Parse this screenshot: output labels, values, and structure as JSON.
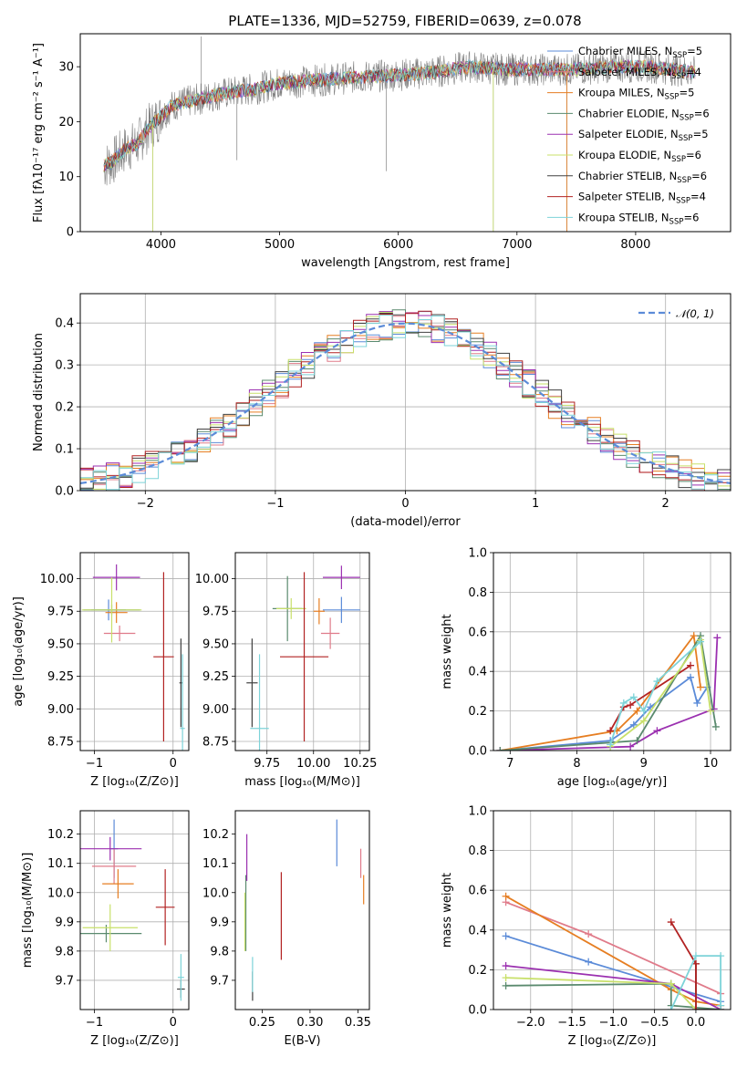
{
  "chart_data": [
    {
      "id": "spectrum",
      "type": "line",
      "title": "PLATE=1336, MJD=52759, FIBERID=0639, z=0.078",
      "xlabel": "wavelength [Angstrom, rest frame]",
      "ylabel": "Flux [fλ10⁻¹⁷ erg cm⁻² s⁻¹ A⁻¹]",
      "xlim": [
        3320,
        8800
      ],
      "ylim": [
        0,
        36
      ],
      "xticks": [
        4000,
        5000,
        6000,
        7000,
        8000
      ],
      "yticks": [
        0,
        10,
        20,
        30
      ],
      "grid": false,
      "legend_position": "top-right",
      "data_color": "#808080",
      "data_anchors": {
        "x": [
          3520,
          3580,
          3700,
          3800,
          3900,
          4000,
          4100,
          4300,
          4500,
          4800,
          5000,
          5300,
          5600,
          6000,
          6300,
          6600,
          6900,
          7200,
          7500,
          7800,
          8100,
          8500
        ],
        "y": [
          12,
          12.5,
          15,
          16,
          19,
          21,
          23,
          24,
          25,
          26,
          27,
          27.5,
          28,
          28.5,
          29,
          30,
          29.5,
          29.5,
          29.5,
          30,
          30,
          29
        ]
      },
      "series": [
        {
          "name": "Chabrier MILES, N",
          "sub": "SSP",
          "suffix": "=5",
          "color": "#5b8bd8"
        },
        {
          "name": "Salpeter MILES, N",
          "sub": "SSP",
          "suffix": "=4",
          "color": "#e07b8a"
        },
        {
          "name": "Kroupa MILES, N",
          "sub": "SSP",
          "suffix": "=5",
          "color": "#e67e22"
        },
        {
          "name": "Chabrier ELODIE, N",
          "sub": "SSP",
          "suffix": "=6",
          "color": "#5a8a6e"
        },
        {
          "name": "Salpeter ELODIE, N",
          "sub": "SSP",
          "suffix": "=5",
          "color": "#9b30b0"
        },
        {
          "name": "Kroupa ELODIE, N",
          "sub": "SSP",
          "suffix": "=6",
          "color": "#c8e06a"
        },
        {
          "name": "Chabrier STELIB, N",
          "sub": "SSP",
          "suffix": "=6",
          "color": "#404040"
        },
        {
          "name": "Salpeter STELIB, N",
          "sub": "SSP",
          "suffix": "=4",
          "color": "#b22222"
        },
        {
          "name": "Kroupa STELIB, N",
          "sub": "SSP",
          "suffix": "=6",
          "color": "#7dd3d8"
        }
      ]
    },
    {
      "id": "histogram",
      "type": "histogram",
      "xlabel": "(data-model)/error",
      "ylabel": "Normed distribution",
      "xlim": [
        -2.5,
        2.5
      ],
      "ylim": [
        0,
        0.47
      ],
      "xticks": [
        -2,
        -1,
        0,
        1,
        2
      ],
      "yticks": [
        0.0,
        0.1,
        0.2,
        0.3,
        0.4
      ],
      "grid": true,
      "legend_position": "top-right",
      "reference_curve": {
        "name": "𝒩(0, 1)",
        "mean": 0,
        "sigma": 1,
        "color": "#5b8bd8"
      },
      "bin_width": 0.1
    },
    {
      "id": "age_vs_Z",
      "type": "scatter",
      "xlabel": "Z [log₁₀(Z/Z⊙)]",
      "ylabel": "age  [log₁₀(age/yr)]",
      "xlim": [
        -1.18,
        0.2
      ],
      "ylim": [
        8.68,
        10.2
      ],
      "xticks": [
        -1,
        0
      ],
      "yticks": [
        8.75,
        9.0,
        9.25,
        9.5,
        9.75,
        10.0
      ],
      "grid": true,
      "points": [
        {
          "x": -0.82,
          "y": 9.76,
          "xerr": 0.22,
          "yerr": 0.08,
          "color": "#5b8bd8"
        },
        {
          "x": -0.68,
          "y": 9.58,
          "xerr": 0.2,
          "yerr": 0.06,
          "color": "#e07b8a"
        },
        {
          "x": -0.72,
          "y": 9.74,
          "xerr": 0.14,
          "yerr": 0.08,
          "color": "#e67e22"
        },
        {
          "x": -0.78,
          "y": 9.76,
          "xerr": 0.36,
          "yerr": 0.04,
          "color": "#5a8a6e"
        },
        {
          "x": -0.72,
          "y": 10.01,
          "xerr": 0.3,
          "yerr": 0.1,
          "color": "#9b30b0"
        },
        {
          "x": -0.78,
          "y": 9.76,
          "xerr": 0.38,
          "yerr": 0.25,
          "color": "#c8e06a"
        },
        {
          "x": 0.1,
          "y": 9.2,
          "xerr": 0.02,
          "yerr": 0.34,
          "color": "#404040"
        },
        {
          "x": -0.12,
          "y": 9.4,
          "xerr": 0.13,
          "yerr": 0.65,
          "color": "#b22222"
        },
        {
          "x": 0.12,
          "y": 8.85,
          "xerr": 0.03,
          "yerr": 0.57,
          "color": "#7dd3d8"
        }
      ]
    },
    {
      "id": "age_vs_mass",
      "type": "scatter",
      "xlabel": "mass [log₁₀(M/M⊙)]",
      "ylabel": "",
      "xlim": [
        9.58,
        10.3
      ],
      "ylim": [
        8.68,
        10.2
      ],
      "xticks": [
        9.75,
        10.0,
        10.25
      ],
      "yticks": [
        8.75,
        9.0,
        9.25,
        9.5,
        9.75,
        10.0
      ],
      "grid": true,
      "points": [
        {
          "x": 10.15,
          "y": 9.76,
          "xerr": 0.1,
          "yerr": 0.1,
          "color": "#5b8bd8"
        },
        {
          "x": 10.09,
          "y": 9.58,
          "xerr": 0.05,
          "yerr": 0.12,
          "color": "#e07b8a"
        },
        {
          "x": 10.03,
          "y": 9.75,
          "xerr": 0.03,
          "yerr": 0.1,
          "color": "#e67e22"
        },
        {
          "x": 9.86,
          "y": 9.77,
          "xerr": 0.08,
          "yerr": 0.25,
          "color": "#5a8a6e"
        },
        {
          "x": 10.15,
          "y": 10.01,
          "xerr": 0.1,
          "yerr": 0.09,
          "color": "#9b30b0"
        },
        {
          "x": 9.88,
          "y": 9.77,
          "xerr": 0.08,
          "yerr": 0.08,
          "color": "#c8e06a"
        },
        {
          "x": 9.67,
          "y": 9.2,
          "xerr": 0.03,
          "yerr": 0.34,
          "color": "#404040"
        },
        {
          "x": 9.95,
          "y": 9.4,
          "xerr": 0.13,
          "yerr": 0.65,
          "color": "#b22222"
        },
        {
          "x": 9.71,
          "y": 8.85,
          "xerr": 0.05,
          "yerr": 0.57,
          "color": "#7dd3d8"
        }
      ]
    },
    {
      "id": "weight_vs_age",
      "type": "line",
      "xlabel": "age  [log₁₀(age/yr)]",
      "ylabel": "mass weight",
      "xlim": [
        6.75,
        10.3
      ],
      "ylim": [
        0,
        1.0
      ],
      "xticks": [
        7,
        8,
        9,
        10
      ],
      "yticks": [
        0.0,
        0.2,
        0.4,
        0.6,
        0.8,
        1.0
      ],
      "grid": true,
      "series": [
        {
          "color": "#5b8bd8",
          "x": [
            6.85,
            8.5,
            8.85,
            9.1,
            9.7,
            9.8,
            9.95
          ],
          "y": [
            0.0,
            0.05,
            0.13,
            0.22,
            0.37,
            0.24,
            0.32
          ]
        },
        {
          "color": "#e67e22",
          "x": [
            6.85,
            8.6,
            8.9,
            9.75,
            9.85
          ],
          "y": [
            0.0,
            0.1,
            0.2,
            0.58,
            0.32
          ]
        },
        {
          "color": "#9b30b0",
          "x": [
            6.85,
            8.8,
            9.2,
            10.05,
            10.1
          ],
          "y": [
            0.0,
            0.02,
            0.1,
            0.21,
            0.57
          ]
        },
        {
          "color": "#b22222",
          "x": [
            8.5,
            8.7,
            8.8,
            9.7
          ],
          "y": [
            0.1,
            0.22,
            0.23,
            0.43
          ]
        },
        {
          "color": "#5a8a6e",
          "x": [
            6.85,
            8.9,
            9.85,
            10.08
          ],
          "y": [
            0.0,
            0.05,
            0.58,
            0.12
          ]
        },
        {
          "color": "#c8e06a",
          "x": [
            8.5,
            9.0,
            9.85,
            10.0
          ],
          "y": [
            0.02,
            0.15,
            0.56,
            0.2
          ]
        },
        {
          "color": "#7dd3d8",
          "x": [
            8.5,
            8.7,
            8.85,
            9.0,
            9.2,
            9.85
          ],
          "y": [
            0.03,
            0.24,
            0.27,
            0.2,
            0.35,
            0.55
          ]
        }
      ]
    },
    {
      "id": "mass_vs_Z",
      "type": "scatter",
      "xlabel": "Z [log₁₀(Z/Z⊙)]",
      "ylabel": "mass [log₁₀(M/M⊙)]",
      "xlim": [
        -1.18,
        0.2
      ],
      "ylim": [
        9.6,
        10.28
      ],
      "xticks": [
        -1,
        0
      ],
      "yticks": [
        9.7,
        9.8,
        9.9,
        10.0,
        10.1,
        10.2
      ],
      "grid": true,
      "points": [
        {
          "x": -0.75,
          "y": 10.15,
          "xerr": 0.05,
          "yerr": 0.1,
          "color": "#5b8bd8"
        },
        {
          "x": -0.75,
          "y": 10.09,
          "xerr": 0.28,
          "yerr": 0.06,
          "color": "#e07b8a"
        },
        {
          "x": -0.7,
          "y": 10.03,
          "xerr": 0.2,
          "yerr": 0.05,
          "color": "#e67e22"
        },
        {
          "x": -0.85,
          "y": 9.86,
          "xerr": 0.45,
          "yerr": 0.03,
          "color": "#5a8a6e"
        },
        {
          "x": -0.8,
          "y": 10.15,
          "xerr": 0.4,
          "yerr": 0.04,
          "color": "#9b30b0"
        },
        {
          "x": -0.8,
          "y": 9.88,
          "xerr": 0.35,
          "yerr": 0.08,
          "color": "#c8e06a"
        },
        {
          "x": 0.1,
          "y": 9.67,
          "xerr": 0.05,
          "yerr": 0.03,
          "color": "#404040"
        },
        {
          "x": -0.1,
          "y": 9.95,
          "xerr": 0.12,
          "yerr": 0.13,
          "color": "#b22222"
        },
        {
          "x": 0.1,
          "y": 9.71,
          "xerr": 0.04,
          "yerr": 0.08,
          "color": "#7dd3d8"
        }
      ]
    },
    {
      "id": "mass_vs_ebv",
      "type": "scatter",
      "xlabel": "E(B-V)",
      "ylabel": "",
      "xlim": [
        0.222,
        0.362
      ],
      "ylim": [
        9.6,
        10.28
      ],
      "xticks": [
        0.25,
        0.3,
        0.35
      ],
      "yticks": [
        9.7,
        9.8,
        9.9,
        10.0,
        10.1,
        10.2
      ],
      "grid": false,
      "points": [
        {
          "x": 0.328,
          "y": 10.17,
          "xerr": 0,
          "yerr": 0.08,
          "color": "#5b8bd8"
        },
        {
          "x": 0.353,
          "y": 10.1,
          "xerr": 0,
          "yerr": 0.05,
          "color": "#e07b8a"
        },
        {
          "x": 0.356,
          "y": 10.01,
          "xerr": 0,
          "yerr": 0.05,
          "color": "#e67e22"
        },
        {
          "x": 0.233,
          "y": 9.93,
          "xerr": 0,
          "yerr": 0.13,
          "color": "#5a8a6e"
        },
        {
          "x": 0.234,
          "y": 10.12,
          "xerr": 0,
          "yerr": 0.08,
          "color": "#9b30b0"
        },
        {
          "x": 0.232,
          "y": 9.9,
          "xerr": 0,
          "yerr": 0.1,
          "color": "#c8e06a"
        },
        {
          "x": 0.24,
          "y": 9.68,
          "xerr": 0,
          "yerr": 0.05,
          "color": "#404040"
        },
        {
          "x": 0.27,
          "y": 9.92,
          "xerr": 0,
          "yerr": 0.15,
          "color": "#b22222"
        },
        {
          "x": 0.24,
          "y": 9.72,
          "xerr": 0,
          "yerr": 0.06,
          "color": "#7dd3d8"
        }
      ]
    },
    {
      "id": "weight_vs_Z",
      "type": "line",
      "xlabel": "Z [log₁₀(Z/Z⊙)]",
      "ylabel": "mass weight",
      "xlim": [
        -2.45,
        0.42
      ],
      "ylim": [
        0,
        1.0
      ],
      "xticks": [
        -2.0,
        -1.5,
        -1.0,
        -0.5,
        0.0
      ],
      "yticks": [
        0.0,
        0.2,
        0.4,
        0.6,
        0.8,
        1.0
      ],
      "grid": true,
      "series": [
        {
          "color": "#5b8bd8",
          "x": [
            -2.3,
            -1.3,
            0.3
          ],
          "y": [
            0.37,
            0.24,
            0.04
          ]
        },
        {
          "color": "#e07b8a",
          "x": [
            -2.3,
            -1.3,
            0.3
          ],
          "y": [
            0.54,
            0.38,
            0.08
          ]
        },
        {
          "color": "#e67e22",
          "x": [
            -2.3,
            -0.3,
            0.0,
            0.3
          ],
          "y": [
            0.57,
            0.1,
            0.04,
            0.02
          ]
        },
        {
          "color": "#9b30b0",
          "x": [
            -2.3,
            -0.3,
            0.3
          ],
          "y": [
            0.22,
            0.13,
            0.0
          ]
        },
        {
          "color": "#5a8a6e",
          "x": [
            -2.3,
            -0.3,
            -0.3,
            0.3
          ],
          "y": [
            0.12,
            0.13,
            0.02,
            0.0
          ]
        },
        {
          "color": "#c8e06a",
          "x": [
            -2.3,
            -0.3,
            0.0
          ],
          "y": [
            0.16,
            0.13,
            0.0
          ]
        },
        {
          "color": "#404040",
          "x": [
            0.0,
            0.0,
            0.3
          ],
          "y": [
            0.23,
            0.0,
            0.0
          ]
        },
        {
          "color": "#b22222",
          "x": [
            -0.3,
            0.0,
            0.0
          ],
          "y": [
            0.44,
            0.23,
            0.0
          ]
        },
        {
          "color": "#7dd3d8",
          "x": [
            -0.3,
            0.0,
            0.3,
            0.3
          ],
          "y": [
            0.0,
            0.27,
            0.27,
            0.02
          ]
        }
      ]
    }
  ]
}
